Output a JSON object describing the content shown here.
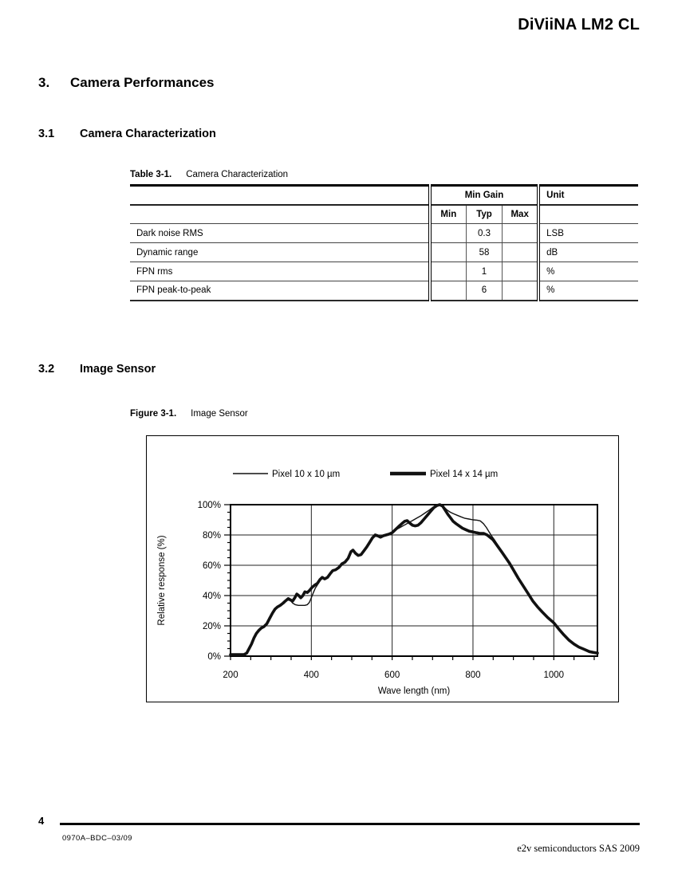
{
  "page": {
    "header_title": "DiViiNA LM2 CL",
    "page_number": "4",
    "doc_ref": "0970A–BDC–03/09",
    "copyright": "e2v semiconductors SAS 2009"
  },
  "sections": {
    "s3": {
      "number": "3.",
      "title": "Camera Performances"
    },
    "s31": {
      "number": "3.1",
      "title": "Camera Characterization"
    },
    "s32": {
      "number": "3.2",
      "title": "Image Sensor"
    }
  },
  "table": {
    "caption_label": "Table 3-1.",
    "caption_text": "Camera Characterization",
    "group_header": "Min Gain",
    "unit_header": "Unit",
    "sub_headers": [
      "Min",
      "Typ",
      "Max"
    ],
    "rows": [
      {
        "parameter": "Dark noise RMS",
        "min": "",
        "typ": "0.3",
        "max": "",
        "unit": "LSB"
      },
      {
        "parameter": "Dynamic range",
        "min": "",
        "typ": "58",
        "max": "",
        "unit": "dB"
      },
      {
        "parameter": "FPN rms",
        "min": "",
        "typ": "1",
        "max": "",
        "unit": "%"
      },
      {
        "parameter": "FPN peak-to-peak",
        "min": "",
        "typ": "6",
        "max": "",
        "unit": "%"
      }
    ]
  },
  "figure": {
    "caption_label": "Figure 3-1.",
    "caption_text": "Image Sensor"
  },
  "chart_data": {
    "type": "line",
    "title": "",
    "xlabel": "Wave length (nm)",
    "ylabel": "Relative response (%)",
    "xlim": [
      200,
      1108
    ],
    "ylim": [
      0,
      100
    ],
    "x_major_ticks": [
      200,
      400,
      600,
      800,
      1000
    ],
    "x_gridlines": [
      400,
      600,
      800,
      1000
    ],
    "x_minor_step": 50,
    "y_major_ticks": [
      0,
      20,
      40,
      60,
      80,
      100
    ],
    "y_minor_step": 5,
    "grid": true,
    "legend_position": "top",
    "line_color": "#111111",
    "series": [
      {
        "name": "Pixel 10 x 10 µm",
        "weight": "thin",
        "points": [
          [
            200,
            1
          ],
          [
            212,
            1
          ],
          [
            224,
            1
          ],
          [
            233,
            1
          ],
          [
            240,
            2
          ],
          [
            246,
            5
          ],
          [
            252,
            8
          ],
          [
            258,
            12
          ],
          [
            264,
            15
          ],
          [
            270,
            17
          ],
          [
            276,
            18.5
          ],
          [
            283,
            19.5
          ],
          [
            290,
            21.5
          ],
          [
            297,
            25
          ],
          [
            304,
            28.5
          ],
          [
            310,
            31
          ],
          [
            316,
            32.5
          ],
          [
            323,
            33.5
          ],
          [
            330,
            35
          ],
          [
            336,
            36.5
          ],
          [
            343,
            38
          ],
          [
            349,
            36.5
          ],
          [
            354,
            35
          ],
          [
            360,
            34
          ],
          [
            368,
            33.5
          ],
          [
            376,
            33.5
          ],
          [
            384,
            33.5
          ],
          [
            390,
            34
          ],
          [
            395,
            35.5
          ],
          [
            400,
            38.5
          ],
          [
            405,
            42
          ],
          [
            410,
            45
          ],
          [
            415,
            47
          ],
          [
            421,
            50
          ],
          [
            427,
            52
          ],
          [
            433,
            51
          ],
          [
            440,
            52
          ],
          [
            447,
            54.5
          ],
          [
            453,
            56.5
          ],
          [
            460,
            57
          ],
          [
            468,
            58.5
          ],
          [
            476,
            61
          ],
          [
            483,
            62
          ],
          [
            491,
            64.5
          ],
          [
            498,
            69
          ],
          [
            503,
            70
          ],
          [
            509,
            68
          ],
          [
            516,
            66.5
          ],
          [
            523,
            67
          ],
          [
            530,
            69.5
          ],
          [
            537,
            72
          ],
          [
            544,
            75
          ],
          [
            551,
            78
          ],
          [
            558,
            80
          ],
          [
            564,
            79.5
          ],
          [
            571,
            78.5
          ],
          [
            578,
            79.5
          ],
          [
            585,
            80
          ],
          [
            592,
            80.5
          ],
          [
            600,
            81.5
          ],
          [
            610,
            83.5
          ],
          [
            620,
            85
          ],
          [
            630,
            86.5
          ],
          [
            640,
            88
          ],
          [
            650,
            89.5
          ],
          [
            660,
            91
          ],
          [
            670,
            92.5
          ],
          [
            681,
            94.5
          ],
          [
            692,
            96.5
          ],
          [
            702,
            98.5
          ],
          [
            712,
            100
          ],
          [
            720,
            100
          ],
          [
            728,
            98.5
          ],
          [
            736,
            96.5
          ],
          [
            744,
            95
          ],
          [
            752,
            94
          ],
          [
            761,
            93
          ],
          [
            770,
            92
          ],
          [
            780,
            91
          ],
          [
            790,
            90.5
          ],
          [
            800,
            90
          ],
          [
            810,
            89.8
          ],
          [
            818,
            89.3
          ],
          [
            826,
            87.5
          ],
          [
            833,
            85
          ],
          [
            840,
            82
          ],
          [
            847,
            79
          ],
          [
            854,
            76.5
          ],
          [
            862,
            73
          ],
          [
            872,
            69
          ],
          [
            881,
            65.5
          ],
          [
            890,
            62
          ],
          [
            900,
            57.5
          ],
          [
            912,
            52
          ],
          [
            924,
            47
          ],
          [
            936,
            42
          ],
          [
            948,
            37
          ],
          [
            960,
            33
          ],
          [
            972,
            29.3
          ],
          [
            985,
            25.7
          ],
          [
            1000,
            22.3
          ],
          [
            1012,
            18.2
          ],
          [
            1025,
            14.2
          ],
          [
            1038,
            10.7
          ],
          [
            1050,
            8.2
          ],
          [
            1062,
            6.2
          ],
          [
            1075,
            4.6
          ],
          [
            1088,
            3.1
          ],
          [
            1098,
            2.6
          ],
          [
            1108,
            2
          ]
        ]
      },
      {
        "name": "Pixel 14 x 14 µm",
        "weight": "thick",
        "points": [
          [
            200,
            1
          ],
          [
            212,
            1
          ],
          [
            224,
            1
          ],
          [
            233,
            1
          ],
          [
            240,
            2
          ],
          [
            246,
            5
          ],
          [
            252,
            8
          ],
          [
            258,
            12
          ],
          [
            264,
            15
          ],
          [
            270,
            17
          ],
          [
            276,
            18.5
          ],
          [
            283,
            19.5
          ],
          [
            290,
            21.5
          ],
          [
            297,
            25
          ],
          [
            304,
            28.5
          ],
          [
            310,
            31
          ],
          [
            316,
            32.5
          ],
          [
            323,
            33.5
          ],
          [
            330,
            35
          ],
          [
            336,
            36.5
          ],
          [
            343,
            38
          ],
          [
            349,
            37
          ],
          [
            354,
            36.5
          ],
          [
            359,
            38.5
          ],
          [
            364,
            41
          ],
          [
            369,
            40
          ],
          [
            374,
            38.5
          ],
          [
            379,
            40
          ],
          [
            384,
            42.5
          ],
          [
            390,
            42
          ],
          [
            396,
            43.5
          ],
          [
            402,
            45.5
          ],
          [
            409,
            47
          ],
          [
            415,
            48
          ],
          [
            421,
            50.5
          ],
          [
            427,
            52
          ],
          [
            433,
            51
          ],
          [
            440,
            52
          ],
          [
            447,
            54.5
          ],
          [
            453,
            56.5
          ],
          [
            460,
            57
          ],
          [
            468,
            58.5
          ],
          [
            476,
            61
          ],
          [
            483,
            62
          ],
          [
            491,
            64.5
          ],
          [
            498,
            69
          ],
          [
            503,
            70
          ],
          [
            509,
            68
          ],
          [
            516,
            66.5
          ],
          [
            523,
            67
          ],
          [
            530,
            69.5
          ],
          [
            537,
            72
          ],
          [
            544,
            75
          ],
          [
            551,
            78
          ],
          [
            558,
            80
          ],
          [
            564,
            79.5
          ],
          [
            571,
            78.5
          ],
          [
            578,
            79.5
          ],
          [
            585,
            80
          ],
          [
            592,
            80.5
          ],
          [
            600,
            81.5
          ],
          [
            608,
            83.5
          ],
          [
            616,
            85.5
          ],
          [
            624,
            87.5
          ],
          [
            631,
            89
          ],
          [
            637,
            89.5
          ],
          [
            643,
            88
          ],
          [
            650,
            86.5
          ],
          [
            657,
            86
          ],
          [
            664,
            86.5
          ],
          [
            671,
            88
          ],
          [
            679,
            90.5
          ],
          [
            687,
            93
          ],
          [
            695,
            95.5
          ],
          [
            703,
            98
          ],
          [
            711,
            99.5
          ],
          [
            718,
            100
          ],
          [
            725,
            99
          ],
          [
            731,
            96.5
          ],
          [
            738,
            93.5
          ],
          [
            744,
            91.5
          ],
          [
            751,
            89
          ],
          [
            758,
            87.5
          ],
          [
            766,
            86
          ],
          [
            774,
            84.5
          ],
          [
            782,
            83.5
          ],
          [
            791,
            82.5
          ],
          [
            800,
            82
          ],
          [
            809,
            81.5
          ],
          [
            818,
            81
          ],
          [
            827,
            81
          ],
          [
            835,
            80
          ],
          [
            842,
            78.5
          ],
          [
            849,
            77
          ],
          [
            856,
            74.5
          ],
          [
            864,
            71.5
          ],
          [
            872,
            68.5
          ],
          [
            881,
            65
          ],
          [
            890,
            61.5
          ],
          [
            900,
            57
          ],
          [
            912,
            51.5
          ],
          [
            924,
            46.5
          ],
          [
            936,
            41.5
          ],
          [
            948,
            36.5
          ],
          [
            960,
            32.5
          ],
          [
            972,
            29
          ],
          [
            985,
            25.5
          ],
          [
            1000,
            22
          ],
          [
            1012,
            18
          ],
          [
            1025,
            14
          ],
          [
            1038,
            10.5
          ],
          [
            1050,
            8
          ],
          [
            1062,
            6
          ],
          [
            1075,
            4.5
          ],
          [
            1088,
            3
          ],
          [
            1098,
            2.5
          ],
          [
            1108,
            2
          ]
        ]
      }
    ]
  }
}
